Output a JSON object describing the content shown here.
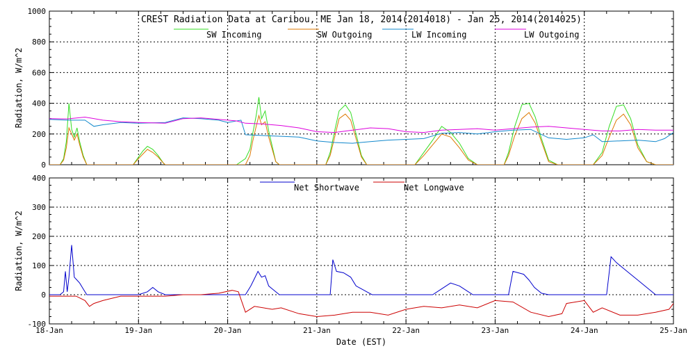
{
  "chart_data": [
    {
      "type": "line",
      "title": "CREST Radiation Data at Caribou, ME   Jan 18, 2014(2014018) - Jan 25, 2014(2014025)",
      "xlabel": "",
      "ylabel": "Radiation, W/m^2",
      "ylim": [
        0,
        1000
      ],
      "yticks": [
        "0",
        "200",
        "400",
        "600",
        "800",
        "1000"
      ],
      "xlim": [
        0,
        7
      ],
      "grid": true,
      "legend": "top",
      "series": [
        {
          "name": "SW Incoming",
          "color": "#33dd22",
          "x": [
            0,
            0.08,
            0.12,
            0.16,
            0.19,
            0.22,
            0.25,
            0.28,
            0.31,
            0.34,
            0.38,
            0.42,
            0.45,
            0.47,
            0.6,
            0.94,
            1.0,
            1.05,
            1.1,
            1.16,
            1.22,
            1.28,
            1.3,
            1.5,
            1.7,
            1.9,
            2.1,
            2.2,
            2.25,
            2.28,
            2.32,
            2.35,
            2.38,
            2.42,
            2.46,
            2.5,
            2.54,
            2.58,
            2.62,
            2.66,
            2.7,
            2.8,
            3.1,
            3.15,
            3.2,
            3.25,
            3.32,
            3.38,
            3.44,
            3.5,
            3.56,
            3.62,
            3.65,
            3.8,
            4.1,
            4.2,
            4.3,
            4.4,
            4.5,
            4.6,
            4.7,
            4.8,
            4.85,
            5.0,
            5.1,
            5.15,
            5.22,
            5.3,
            5.38,
            5.45,
            5.52,
            5.6,
            5.7,
            5.75,
            5.9,
            6.1,
            6.2,
            6.28,
            6.36,
            6.44,
            6.52,
            6.6,
            6.7,
            6.8,
            7.0
          ],
          "values": [
            0,
            0,
            0,
            40,
            150,
            400,
            230,
            180,
            240,
            150,
            60,
            0,
            0,
            0,
            0,
            0,
            50,
            90,
            120,
            100,
            60,
            10,
            0,
            0,
            0,
            0,
            0,
            40,
            100,
            200,
            320,
            440,
            300,
            350,
            220,
            120,
            20,
            0,
            0,
            0,
            0,
            0,
            0,
            80,
            220,
            350,
            390,
            340,
            200,
            60,
            0,
            0,
            0,
            0,
            0,
            80,
            160,
            250,
            210,
            140,
            40,
            0,
            0,
            0,
            0,
            80,
            250,
            390,
            400,
            310,
            170,
            30,
            0,
            0,
            0,
            0,
            80,
            250,
            380,
            390,
            300,
            130,
            20,
            0,
            0
          ]
        },
        {
          "name": "SW Outgoing",
          "color": "#dd7700",
          "x": [
            0,
            0.12,
            0.16,
            0.19,
            0.22,
            0.25,
            0.28,
            0.31,
            0.34,
            0.38,
            0.42,
            0.47,
            0.94,
            1.0,
            1.05,
            1.1,
            1.16,
            1.22,
            1.28,
            1.3,
            2.2,
            2.25,
            2.28,
            2.32,
            2.35,
            2.38,
            2.42,
            2.46,
            2.5,
            2.54,
            2.58,
            3.1,
            3.15,
            3.2,
            3.25,
            3.32,
            3.38,
            3.44,
            3.5,
            3.56,
            3.62,
            4.1,
            4.2,
            4.3,
            4.4,
            4.5,
            4.6,
            4.7,
            4.8,
            5.1,
            5.15,
            5.22,
            5.3,
            5.38,
            5.45,
            5.52,
            5.6,
            5.7,
            6.1,
            6.2,
            6.28,
            6.36,
            6.44,
            6.52,
            6.6,
            6.7,
            6.8,
            7.0
          ],
          "values": [
            0,
            0,
            30,
            110,
            240,
            200,
            160,
            200,
            130,
            50,
            0,
            0,
            0,
            40,
            70,
            100,
            80,
            50,
            10,
            0,
            0,
            60,
            150,
            250,
            320,
            260,
            280,
            180,
            100,
            20,
            0,
            0,
            60,
            180,
            300,
            330,
            290,
            170,
            50,
            0,
            0,
            0,
            60,
            130,
            200,
            180,
            110,
            30,
            0,
            0,
            60,
            190,
            300,
            340,
            270,
            150,
            20,
            0,
            0,
            60,
            180,
            290,
            330,
            260,
            110,
            20,
            0,
            0
          ]
        },
        {
          "name": "LW Incoming",
          "color": "#1188cc",
          "x": [
            0,
            0.2,
            0.4,
            0.45,
            0.5,
            0.6,
            0.8,
            1.0,
            1.3,
            1.5,
            1.7,
            1.9,
            2.0,
            2.15,
            2.2,
            2.4,
            2.6,
            2.8,
            3.0,
            3.2,
            3.4,
            3.6,
            3.8,
            4.0,
            4.2,
            4.4,
            4.6,
            4.8,
            5.0,
            5.2,
            5.4,
            5.6,
            5.7,
            5.8,
            6.0,
            6.1,
            6.2,
            6.4,
            6.6,
            6.8,
            6.9,
            7.0
          ],
          "values": [
            295,
            290,
            290,
            270,
            250,
            260,
            275,
            270,
            275,
            305,
            300,
            290,
            275,
            290,
            195,
            190,
            185,
            180,
            155,
            145,
            140,
            150,
            160,
            165,
            170,
            205,
            210,
            200,
            215,
            225,
            230,
            175,
            170,
            165,
            175,
            195,
            150,
            155,
            160,
            150,
            170,
            210
          ]
        },
        {
          "name": "LW Outgoing",
          "color": "#dd00dd",
          "x": [
            0,
            0.2,
            0.4,
            0.6,
            0.8,
            1.0,
            1.3,
            1.5,
            1.7,
            1.9,
            2.1,
            2.2,
            2.4,
            2.6,
            2.8,
            3.0,
            3.2,
            3.4,
            3.6,
            3.8,
            4.0,
            4.2,
            4.4,
            4.6,
            4.8,
            5.0,
            5.2,
            5.4,
            5.6,
            5.8,
            6.0,
            6.2,
            6.4,
            6.6,
            6.8,
            7.0
          ],
          "values": [
            300,
            298,
            310,
            290,
            280,
            275,
            270,
            300,
            305,
            295,
            285,
            270,
            265,
            255,
            240,
            215,
            210,
            225,
            240,
            235,
            215,
            210,
            225,
            230,
            235,
            225,
            235,
            245,
            250,
            240,
            230,
            220,
            220,
            230,
            225,
            225
          ]
        }
      ]
    },
    {
      "type": "line",
      "title": "",
      "xlabel": "Date (EST)",
      "ylabel": "Radiation, W/m^2",
      "ylim": [
        -100,
        400
      ],
      "yticks": [
        "-100",
        "0",
        "100",
        "200",
        "300",
        "400"
      ],
      "xlim": [
        0,
        7
      ],
      "categories": [
        "18-Jan",
        "19-Jan",
        "20-Jan",
        "21-Jan",
        "22-Jan",
        "23-Jan",
        "24-Jan",
        "25-Jan"
      ],
      "grid": true,
      "legend": "top",
      "series": [
        {
          "name": "Net Shortwave",
          "color": "#0000cc",
          "x": [
            0,
            0.12,
            0.16,
            0.18,
            0.2,
            0.22,
            0.25,
            0.28,
            0.31,
            0.34,
            0.38,
            0.42,
            0.47,
            1.0,
            1.1,
            1.16,
            1.22,
            1.3,
            2.2,
            2.26,
            2.3,
            2.34,
            2.38,
            2.42,
            2.46,
            2.5,
            2.58,
            3.15,
            3.18,
            3.22,
            3.3,
            3.38,
            3.44,
            3.5,
            3.56,
            3.62,
            4.3,
            4.4,
            4.5,
            4.6,
            4.7,
            4.75,
            5.15,
            5.2,
            5.26,
            5.32,
            5.38,
            5.44,
            5.52,
            5.6,
            6.25,
            6.3,
            6.36,
            6.44,
            6.52,
            6.6,
            6.7,
            6.8,
            7.0
          ],
          "values": [
            0,
            0,
            10,
            80,
            10,
            60,
            170,
            60,
            50,
            40,
            20,
            0,
            0,
            0,
            10,
            25,
            10,
            0,
            0,
            30,
            55,
            80,
            60,
            65,
            30,
            20,
            0,
            0,
            120,
            80,
            75,
            60,
            30,
            20,
            10,
            0,
            0,
            20,
            40,
            30,
            10,
            0,
            0,
            80,
            75,
            70,
            50,
            25,
            5,
            0,
            0,
            130,
            110,
            90,
            70,
            50,
            25,
            0,
            0
          ]
        },
        {
          "name": "Net Longwave",
          "color": "#cc0000",
          "x": [
            0,
            0.2,
            0.3,
            0.4,
            0.45,
            0.5,
            0.6,
            0.8,
            1.0,
            1.3,
            1.5,
            1.7,
            1.9,
            2.05,
            2.12,
            2.2,
            2.3,
            2.5,
            2.6,
            2.8,
            3.0,
            3.2,
            3.4,
            3.6,
            3.8,
            4.0,
            4.2,
            4.4,
            4.6,
            4.8,
            5.0,
            5.2,
            5.4,
            5.6,
            5.75,
            5.8,
            6.0,
            6.1,
            6.2,
            6.4,
            6.6,
            6.8,
            6.95,
            7.0
          ],
          "values": [
            -5,
            -5,
            -5,
            -20,
            -40,
            -30,
            -20,
            -5,
            -5,
            -5,
            0,
            0,
            5,
            15,
            10,
            -60,
            -40,
            -50,
            -45,
            -65,
            -75,
            -70,
            -60,
            -60,
            -70,
            -50,
            -40,
            -45,
            -35,
            -45,
            -20,
            -25,
            -60,
            -75,
            -65,
            -30,
            -20,
            -60,
            -45,
            -70,
            -70,
            -60,
            -50,
            -30
          ]
        }
      ]
    }
  ]
}
